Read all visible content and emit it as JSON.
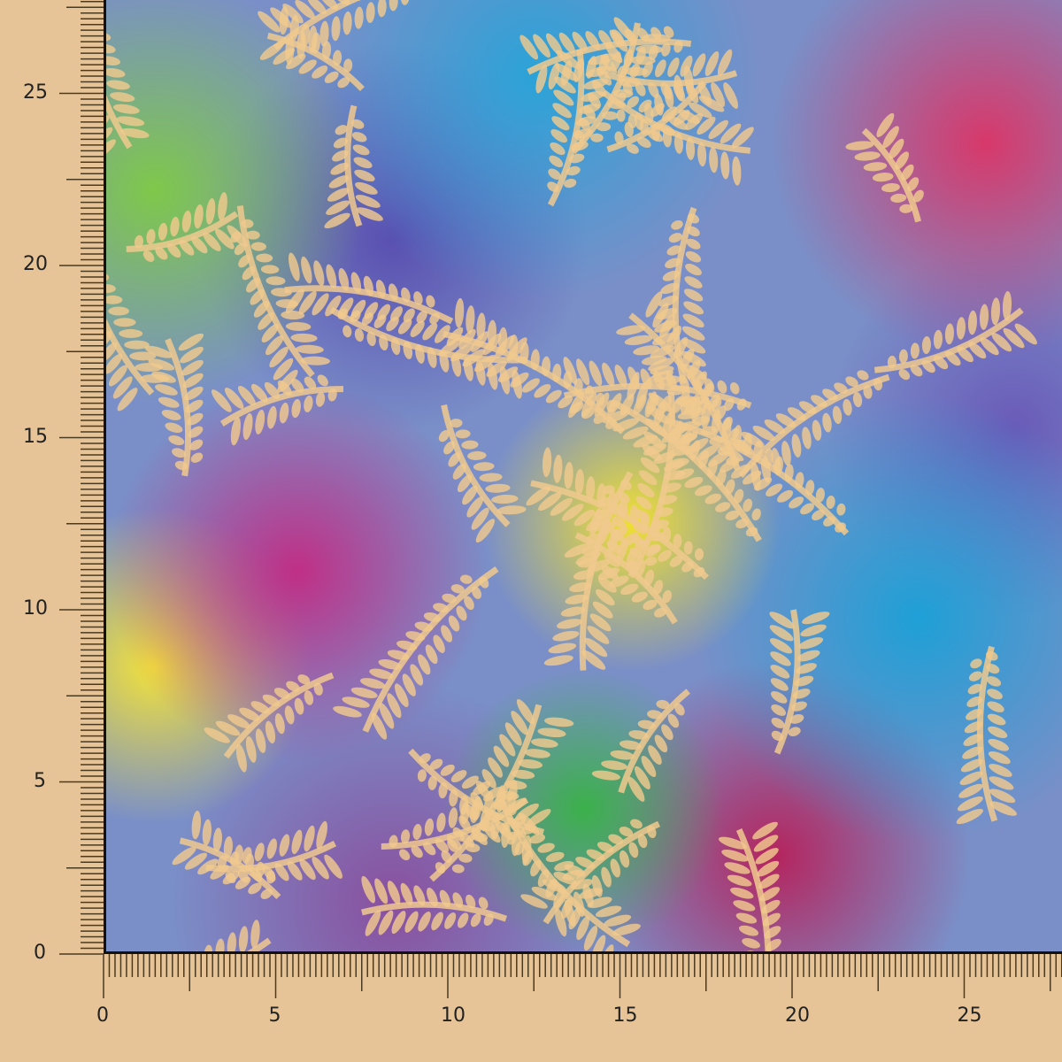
{
  "image": {
    "subject": "batik fabric swatch with fern leaf pattern",
    "colors": {
      "background": "#e6c497",
      "leaf": "#f0c98e",
      "ruler": "#4a3a20"
    }
  },
  "ruler": {
    "unit_labels_x": [
      "0",
      "5",
      "10",
      "15",
      "20",
      "25"
    ],
    "unit_labels_y": [
      "0",
      "5",
      "10",
      "15",
      "20",
      "25"
    ]
  }
}
